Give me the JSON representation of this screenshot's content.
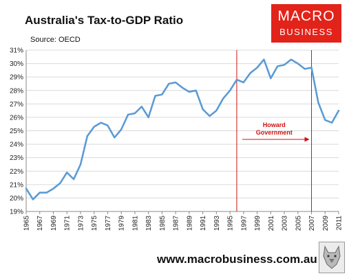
{
  "header": {
    "title": "Australia's Tax-to-GDP Ratio",
    "source": "Source: OECD"
  },
  "logo": {
    "line1": "MACRO",
    "line2": "BUSINESS",
    "color": "#e2231a"
  },
  "footer": {
    "url": "www.macrobusiness.com.au",
    "icon": "wolf-logo-icon"
  },
  "chart_data": {
    "type": "line",
    "title": "Australia's Tax-to-GDP Ratio",
    "xlabel": "",
    "ylabel": "",
    "ylim": [
      19,
      31
    ],
    "yticks": [
      "19%",
      "20%",
      "21%",
      "22%",
      "23%",
      "24%",
      "25%",
      "26%",
      "27%",
      "28%",
      "29%",
      "30%",
      "31%"
    ],
    "xlim": [
      1965,
      2011
    ],
    "xticks": [
      "1965",
      "1967",
      "1969",
      "1971",
      "1973",
      "1975",
      "1977",
      "1979",
      "1981",
      "1983",
      "1985",
      "1987",
      "1989",
      "1991",
      "1993",
      "1995",
      "1997",
      "1999",
      "2001",
      "2003",
      "2005",
      "2007",
      "2009",
      "2011"
    ],
    "grid": true,
    "line_color": "#5b9bd5",
    "series": [
      {
        "x": [
          1965,
          1966,
          1967,
          1968,
          1969,
          1970,
          1971,
          1972,
          1973,
          1974,
          1975,
          1976,
          1977,
          1978,
          1979,
          1980,
          1981,
          1982,
          1983,
          1984,
          1985,
          1986,
          1987,
          1988,
          1989,
          1990,
          1991,
          1992,
          1993,
          1994,
          1995,
          1996,
          1997,
          1998,
          1999,
          2000,
          2001,
          2002,
          2003,
          2004,
          2005,
          2006,
          2007,
          2008,
          2009,
          2010,
          2011
        ],
        "values": [
          20.7,
          19.9,
          20.4,
          20.4,
          20.7,
          21.1,
          21.9,
          21.4,
          22.5,
          24.6,
          25.3,
          25.6,
          25.4,
          24.5,
          25.1,
          26.2,
          26.3,
          26.8,
          26.0,
          27.6,
          27.7,
          28.5,
          28.6,
          28.2,
          27.9,
          28.0,
          26.6,
          26.1,
          26.5,
          27.4,
          28.0,
          28.8,
          28.6,
          29.3,
          29.7,
          30.3,
          28.9,
          29.8,
          29.9,
          30.3,
          30.0,
          29.6,
          29.7,
          27.1,
          25.8,
          25.6,
          26.5
        ]
      }
    ],
    "annotation": {
      "label_line1": "Howard",
      "label_line2": "Government",
      "start_x": 1996,
      "end_x": 2007,
      "color": "#d01010"
    }
  }
}
